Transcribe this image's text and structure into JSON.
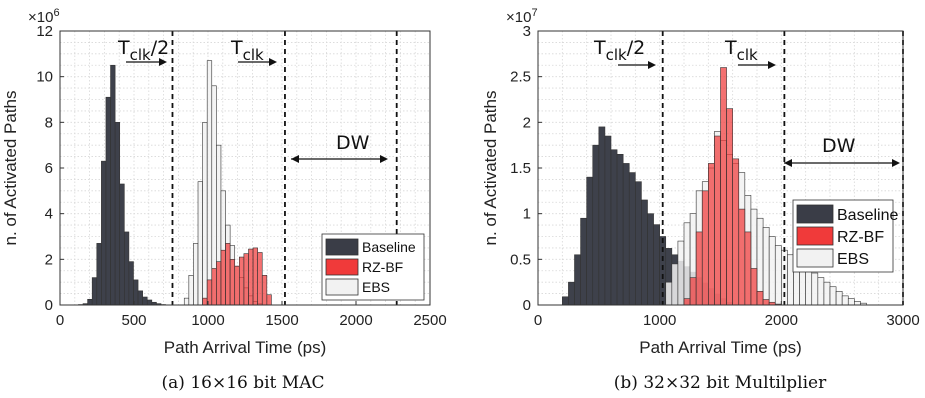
{
  "chart_data": [
    {
      "type": "bar",
      "caption": "(a) 16×16 bit MAC",
      "xlabel": "Path Arrival Time (ps)",
      "ylabel": "n. of Activated Paths",
      "exponent": "×10",
      "exponent_power": "6",
      "xlim": [
        0,
        2500
      ],
      "ylim": [
        0,
        12000000
      ],
      "xticks": [
        0,
        500,
        1000,
        1500,
        2000,
        2500
      ],
      "xtick_labels": [
        "0",
        "500",
        "1000",
        "1500",
        "2000",
        "2500"
      ],
      "yticks": [
        0,
        2000000,
        4000000,
        6000000,
        8000000,
        10000000,
        12000000
      ],
      "ytick_labels": [
        "0",
        "2",
        "4",
        "6",
        "8",
        "10",
        "12"
      ],
      "grid": true,
      "legend_position": "lower-right",
      "bin_width": 31,
      "series": [
        {
          "name": "Baseline",
          "color": "#3a3d47",
          "x": [
            140,
            171,
            202,
            233,
            264,
            295,
            326,
            357,
            388,
            419,
            450,
            481,
            512,
            543,
            574,
            605,
            636,
            667,
            698
          ],
          "values": [
            20000,
            60000,
            250000,
            1200000,
            2700000,
            6300000,
            9100000,
            10500000,
            8000000,
            5300000,
            3200000,
            1900000,
            1100000,
            620000,
            350000,
            220000,
            120000,
            60000,
            20000
          ]
        },
        {
          "name": "RZ-BF",
          "color": "#f03a3a",
          "x": [
            979,
            1010,
            1041,
            1072,
            1103,
            1134,
            1165,
            1196,
            1227,
            1258,
            1289,
            1320,
            1351,
            1382,
            1413
          ],
          "values": [
            300000,
            1100000,
            1600000,
            1900000,
            2400000,
            2700000,
            2000000,
            1700000,
            2100000,
            2250000,
            2450000,
            2500000,
            2300000,
            1300000,
            450000
          ]
        },
        {
          "name": "EBS",
          "color": "#f2f2f2",
          "x": [
            855,
            886,
            917,
            948,
            979,
            1010,
            1041,
            1072,
            1103,
            1134,
            1165,
            1196,
            1227,
            1258,
            1289,
            1320,
            1351
          ],
          "values": [
            300000,
            1300000,
            2700000,
            5400000,
            8000000,
            10700000,
            9600000,
            7000000,
            5000000,
            3500000,
            2600000,
            1700000,
            1200000,
            750000,
            400000,
            150000,
            50000
          ]
        }
      ],
      "vlines": [
        760,
        1520,
        2275
      ],
      "annotations": {
        "half_clock": "T",
        "half_clock_sub": "clk",
        "half_clock_suffix": "/2",
        "clock": "T",
        "clock_sub": "clk",
        "window": "DW"
      }
    },
    {
      "type": "bar",
      "caption": "(b) 32×32 bit Multilplier",
      "xlabel": "Path Arrival Time (ps)",
      "ylabel": "n. of Activated Paths",
      "exponent": "×10",
      "exponent_power": "7",
      "xlim": [
        0,
        3000
      ],
      "ylim": [
        0,
        30000000
      ],
      "xticks": [
        0,
        1000,
        2000,
        3000
      ],
      "xtick_labels": [
        "0",
        "1000",
        "2000",
        "3000"
      ],
      "yticks": [
        0,
        5000000,
        10000000,
        15000000,
        20000000,
        25000000,
        30000000
      ],
      "ytick_labels": [
        "0",
        "0.5",
        "1",
        "1.5",
        "2",
        "2.5",
        "3"
      ],
      "grid": true,
      "legend_position": "right",
      "bin_width": 50,
      "series": [
        {
          "name": "Baseline",
          "color": "#3a3d47",
          "x": [
            225,
            275,
            325,
            375,
            425,
            475,
            525,
            575,
            625,
            675,
            725,
            775,
            825,
            875,
            925,
            975,
            1025,
            1075,
            1125,
            1175,
            1225,
            1275,
            1325,
            1375,
            1425,
            1475,
            1525,
            1575
          ],
          "values": [
            900000,
            2500000,
            5500000,
            9500000,
            14000000,
            17500000,
            19500000,
            18500000,
            17000000,
            16500000,
            15500000,
            14500000,
            13500000,
            11500000,
            10000000,
            8800000,
            7500000,
            6200000,
            5500000,
            4800000,
            4200000,
            3600000,
            3000000,
            2400000,
            1800000,
            1200000,
            700000,
            300000
          ]
        },
        {
          "name": "RZ-BF",
          "color": "#f03a3a",
          "x": [
            1225,
            1275,
            1325,
            1375,
            1425,
            1475,
            1525,
            1575,
            1625,
            1675,
            1725,
            1775,
            1825,
            1875,
            1925,
            1975
          ],
          "values": [
            700000,
            3000000,
            8000000,
            12500000,
            15500000,
            18500000,
            26000000,
            21500000,
            16000000,
            10500000,
            8000000,
            4000000,
            1500000,
            600000,
            300000,
            100000
          ]
        },
        {
          "name": "EBS",
          "color": "#f2f2f2",
          "x": [
            1075,
            1125,
            1175,
            1225,
            1275,
            1325,
            1375,
            1425,
            1475,
            1525,
            1575,
            1625,
            1675,
            1725,
            1775,
            1825,
            1875,
            1925,
            1975,
            2025,
            2075,
            2125,
            2175,
            2225,
            2275,
            2325,
            2375,
            2425,
            2475,
            2525,
            2575,
            2625,
            2675
          ],
          "values": [
            2500000,
            4500000,
            7000000,
            9000000,
            10000000,
            12500000,
            13500000,
            15000000,
            19000000,
            18000000,
            16500000,
            15500000,
            14500000,
            12000000,
            10500000,
            9500000,
            8500000,
            7500000,
            6500000,
            6000000,
            5500000,
            5000000,
            4500000,
            4000000,
            3500000,
            3000000,
            2500000,
            2000000,
            1500000,
            1000000,
            700000,
            400000,
            200000
          ]
        }
      ],
      "vlines": [
        1025,
        2025,
        3000
      ],
      "annotations": {
        "half_clock": "T",
        "half_clock_sub": "clk",
        "half_clock_suffix": "/2",
        "clock": "T",
        "clock_sub": "clk",
        "window": "DW"
      }
    }
  ]
}
